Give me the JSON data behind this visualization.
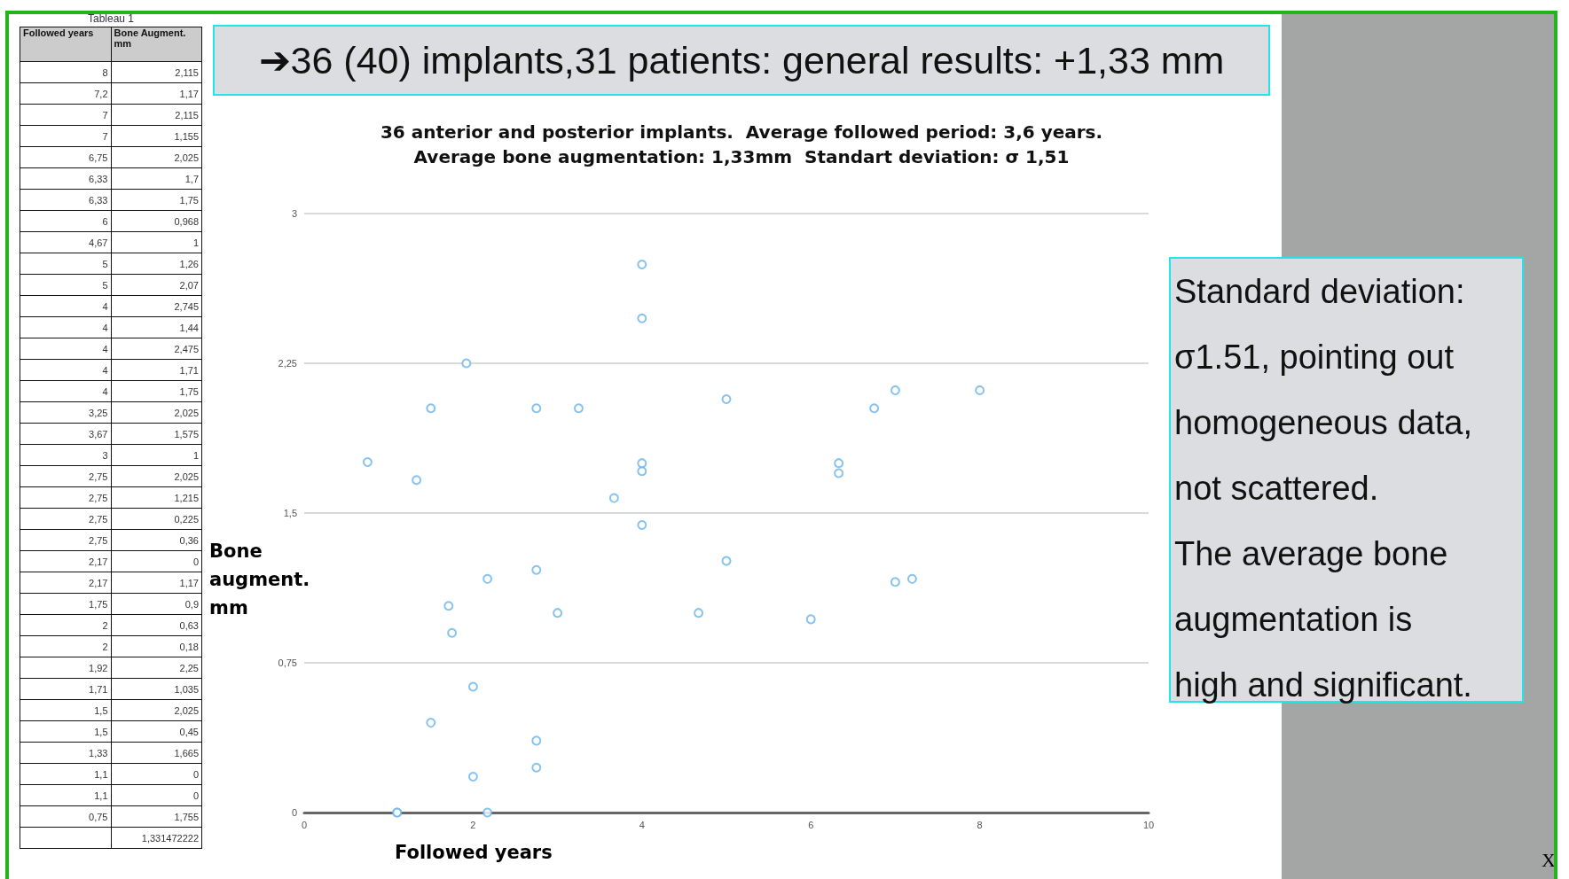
{
  "chart_data": [
    {
      "type": "other",
      "title": "Tableau 1",
      "annotations": [
        "Followed years",
        "Bone Augment. mm",
        "8",
        "2,115",
        "7,2",
        "1,17",
        "7",
        "2,115",
        "7",
        "1,155",
        "6,75",
        "2,025",
        "6,33",
        "1,7",
        "6,33",
        "1,75",
        "6",
        "0,968",
        "4,67",
        "1",
        "5",
        "1,26",
        "5",
        "2,07",
        "4",
        "2,745",
        "4",
        "1,44",
        "4",
        "2,475",
        "4",
        "1,71",
        "4",
        "1,75",
        "3,25",
        "2,025",
        "3,67",
        "1,575",
        "3",
        "1",
        "2,75",
        "2,025",
        "2,75",
        "1,215",
        "2,75",
        "0,225",
        "2,75",
        "0,36",
        "2,17",
        "0",
        "2,17",
        "1,17",
        "1,75",
        "0,9",
        "2",
        "0,63",
        "2",
        "0,18",
        "1,92",
        "2,25",
        "1,71",
        "1,035",
        "1,5",
        "2,025",
        "1,5",
        "0,45",
        "1,33",
        "1,665",
        "1,1",
        "0",
        "1,1",
        "0",
        "0,75",
        "1,755",
        "1,331472222"
      ]
    },
    {
      "type": "scatter",
      "title": "➔36 (40) implants,31 patients: general results: +1,33 mm",
      "subtitle": "36 anterior and posterior implants.  Average followed period: 3,6 years.\nAverage bone augmentation: 1,33mm  Standart deviation: σ 1,51",
      "xlabel": "Followed years",
      "ylabel": "Bone augment. mm",
      "x": [
        8,
        7.2,
        7,
        7,
        6.75,
        6.33,
        6.33,
        6,
        4.67,
        5,
        5,
        4,
        4,
        4,
        4,
        4,
        3.25,
        3.67,
        3,
        2.75,
        2.75,
        2.75,
        2.75,
        2.17,
        2.17,
        1.75,
        2,
        2,
        1.92,
        1.71,
        1.5,
        1.5,
        1.33,
        1.1,
        1.1,
        0.75
      ],
      "values": [
        2.115,
        1.17,
        2.115,
        1.155,
        2.025,
        1.7,
        1.75,
        0.968,
        1,
        1.26,
        2.07,
        2.745,
        1.44,
        2.475,
        1.71,
        1.75,
        2.025,
        1.575,
        1,
        2.025,
        1.215,
        0.225,
        0.36,
        0,
        1.17,
        0.9,
        0.63,
        0.18,
        2.25,
        1.035,
        2.025,
        0.45,
        1.665,
        0,
        0,
        1.755
      ],
      "color": "#6ab4e8",
      "marker": "circle",
      "grid": "y",
      "xlim": [
        0,
        10
      ],
      "xticks": [
        0,
        2,
        4,
        6,
        8,
        10
      ],
      "ylim": [
        0,
        3
      ],
      "yticks": [
        0,
        {
          "value": 0.75,
          "label": "0,75"
        },
        {
          "value": 1.5,
          "label": "1,5"
        },
        {
          "value": 2.25,
          "label": "2,25"
        },
        3
      ],
      "annotations": [
        "Standard deviation: σ1.51, pointing out homogeneous data, not scattered.",
        "The average bone augmentation is high and significant.",
        "X"
      ]
    }
  ]
}
